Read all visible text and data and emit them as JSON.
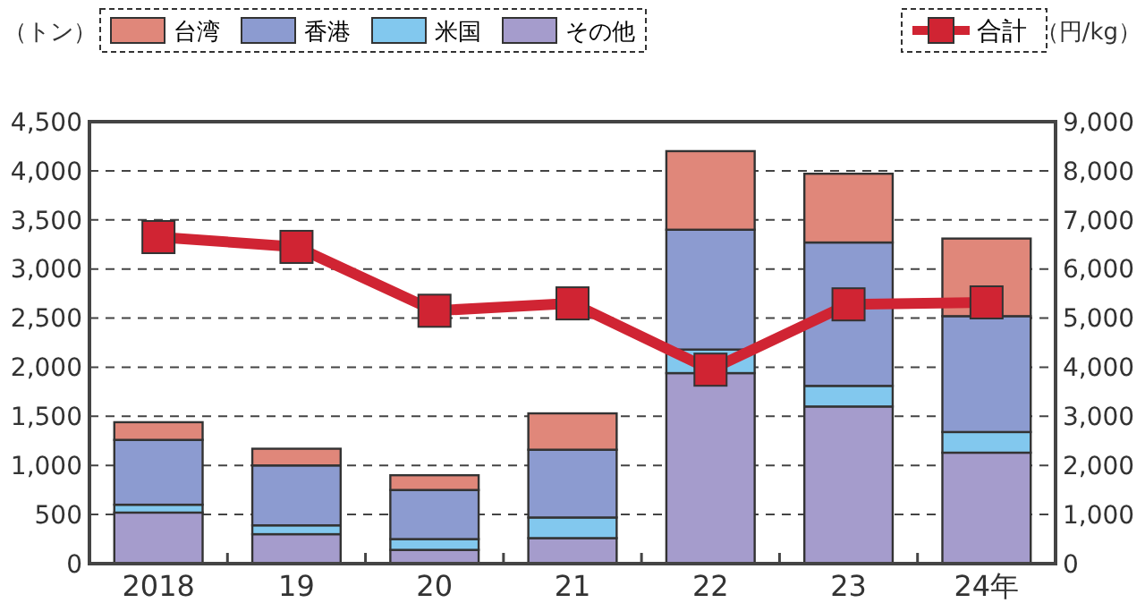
{
  "chart_data": {
    "type": "bar",
    "stacked": true,
    "ylabel": "（トン）",
    "y2label": "（円/kg）",
    "categories": [
      "2018",
      "19",
      "20",
      "21",
      "22",
      "23",
      "24年"
    ],
    "series": [
      {
        "name": "その他",
        "color": "#a59ccc",
        "values": [
          520,
          300,
          140,
          260,
          1940,
          1600,
          1130
        ]
      },
      {
        "name": "米国",
        "color": "#82c8ee",
        "values": [
          80,
          90,
          110,
          210,
          240,
          210,
          210
        ]
      },
      {
        "name": "香港",
        "color": "#8c9bd0",
        "values": [
          660,
          610,
          500,
          690,
          1220,
          1460,
          1180
        ]
      },
      {
        "name": "台湾",
        "color": "#e0877a",
        "values": [
          180,
          170,
          150,
          370,
          800,
          700,
          790
        ]
      },
      {
        "name": "合計",
        "type": "line",
        "axis": "y2",
        "color": "#d02433",
        "values": [
          6650,
          6450,
          5150,
          5300,
          3950,
          5280,
          5320
        ]
      }
    ],
    "ylim": [
      0,
      4500
    ],
    "yticks": [
      {
        "value": 0,
        "label": "0"
      },
      {
        "value": 500,
        "label": "500"
      },
      {
        "value": 1000,
        "label": "1,000"
      },
      {
        "value": 1500,
        "label": "1,500"
      },
      {
        "value": 2000,
        "label": "2,000"
      },
      {
        "value": 2500,
        "label": "2,500"
      },
      {
        "value": 3000,
        "label": "3,000"
      },
      {
        "value": 3500,
        "label": "3,500"
      },
      {
        "value": 4000,
        "label": "4,000"
      },
      {
        "value": 4500,
        "label": "4,500"
      }
    ],
    "y2lim": [
      0,
      9000
    ],
    "y2ticks": [
      {
        "value": 0,
        "label": "0"
      },
      {
        "value": 1000,
        "label": "1,000"
      },
      {
        "value": 2000,
        "label": "2,000"
      },
      {
        "value": 3000,
        "label": "3,000"
      },
      {
        "value": 4000,
        "label": "4,000"
      },
      {
        "value": 5000,
        "label": "5,000"
      },
      {
        "value": 6000,
        "label": "6,000"
      },
      {
        "value": 7000,
        "label": "7,000"
      },
      {
        "value": 8000,
        "label": "8,000"
      },
      {
        "value": 9000,
        "label": "9,000"
      }
    ],
    "grid": "y",
    "legend": "top",
    "marker": "square",
    "line_style": "solid"
  }
}
